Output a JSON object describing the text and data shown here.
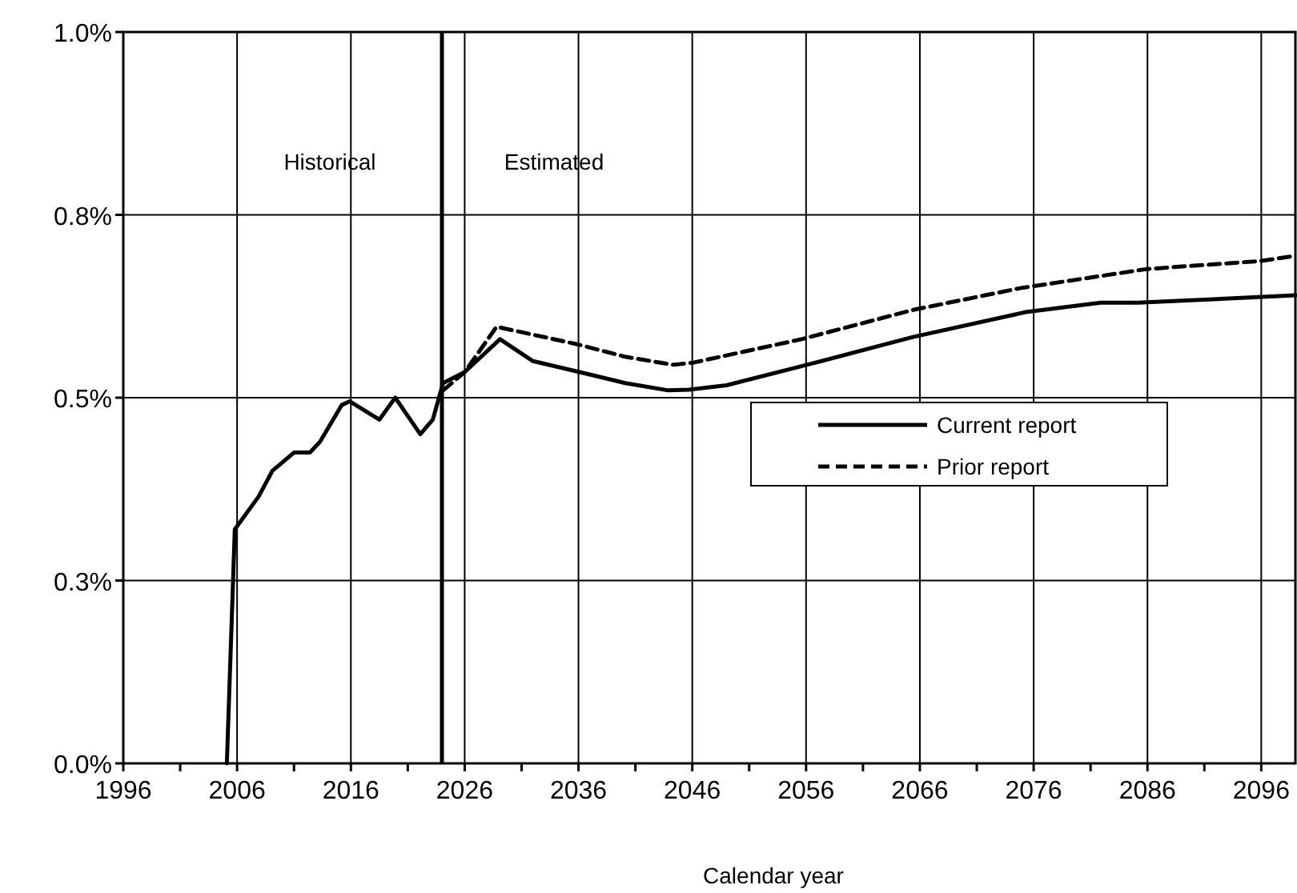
{
  "chart_data": {
    "type": "line",
    "xlabel": "Calendar year",
    "xlim": [
      1996,
      2099
    ],
    "xticks": [
      1996,
      {
        "value": 2001,
        "label": null
      },
      2006,
      {
        "value": 2011,
        "label": null
      },
      2016,
      {
        "value": 2021,
        "label": null
      },
      2026,
      {
        "value": 2031,
        "label": null
      },
      2036,
      {
        "value": 2041,
        "label": null
      },
      2046,
      {
        "value": 2051,
        "label": null
      },
      2056,
      {
        "value": 2061,
        "label": null
      },
      2066,
      {
        "value": 2071,
        "label": null
      },
      2076,
      {
        "value": 2081,
        "label": null
      },
      2086,
      {
        "value": 2091,
        "label": null
      },
      2096
    ],
    "ylim": [
      0,
      1
    ],
    "yticks": [
      {
        "value": 0,
        "label": "0.0%"
      },
      {
        "value": 0.25,
        "label": "0.3%"
      },
      {
        "value": 0.5,
        "label": "0.5%"
      },
      {
        "value": 0.75,
        "label": "0.8%"
      },
      {
        "value": 1,
        "label": "1.0%"
      }
    ],
    "grid": true,
    "legend": "right",
    "marker": "none",
    "ref_lines": [
      {
        "axis": "x",
        "value": 2024,
        "color": "#000000"
      }
    ],
    "annotations": [
      "Historical",
      "Estimated"
    ],
    "series": [
      {
        "name": "Current report",
        "color": "#000000",
        "line_style": "solid",
        "x": [
          2005.1,
          2005.8,
          2007.9,
          2009.1,
          2011,
          2012.4,
          2013.3,
          2015.2,
          2015.9,
          2018.5,
          2019.9,
          2022.1,
          2023.2,
          2024.1,
          2026,
          2029.1,
          2032,
          2036.1,
          2040.1,
          2043.9,
          2045.7,
          2049,
          2055.6,
          2065.4,
          2075.3,
          2081.9,
          2085.2,
          2095,
          2099
        ],
        "values": [
          0,
          0.32,
          0.365,
          0.4,
          0.425,
          0.425,
          0.44,
          0.49,
          0.495,
          0.47,
          0.5,
          0.45,
          0.47,
          0.52,
          0.535,
          0.58,
          0.55,
          0.535,
          0.52,
          0.51,
          0.511,
          0.517,
          0.543,
          0.583,
          0.617,
          0.63,
          0.63,
          0.637,
          0.64
        ]
      },
      {
        "name": "Prior report",
        "color": "#000000",
        "line_style": "dashed",
        "x": [
          2024.1,
          2026,
          2028.8,
          2035.9,
          2040.1,
          2044.3,
          2046.1,
          2055.6,
          2065.4,
          2074.9,
          2086,
          2096,
          2099
        ],
        "values": [
          0.51,
          0.535,
          0.597,
          0.573,
          0.556,
          0.545,
          0.548,
          0.58,
          0.62,
          0.65,
          0.676,
          0.687,
          0.694
        ]
      }
    ]
  }
}
